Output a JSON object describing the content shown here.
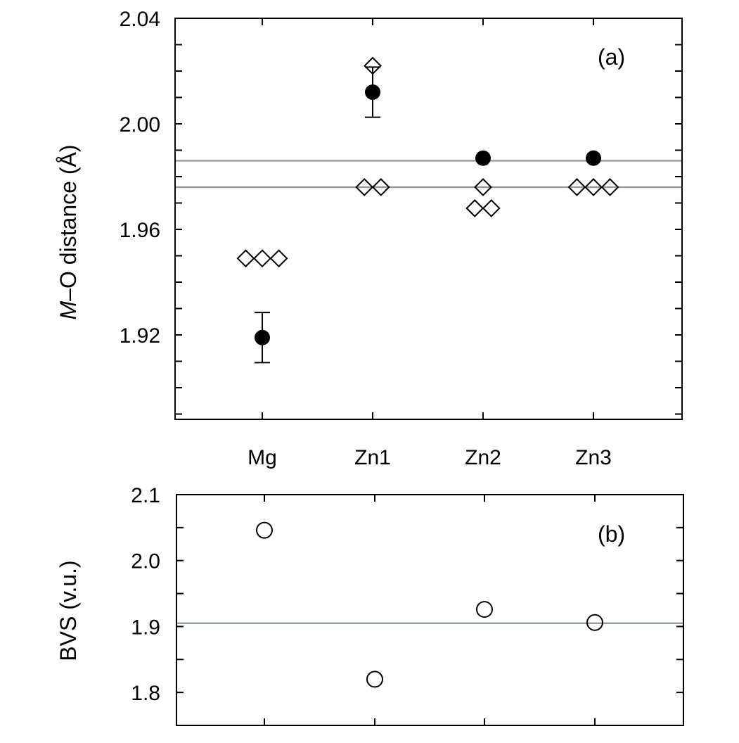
{
  "chart_data": [
    {
      "type": "scatter",
      "panel_label": "(a)",
      "ylabel_italic": "M",
      "ylabel_rest": "–O distance (Å)",
      "categories": [
        "Mg",
        "Zn1",
        "Zn2",
        "Zn3"
      ],
      "ylim": [
        1.888,
        2.04
      ],
      "yticks": [
        "2.04",
        "2.00",
        "1.96",
        "1.92"
      ],
      "ytick_values": [
        2.04,
        2.0,
        1.96,
        1.92
      ],
      "minor_tick_step": 0.01,
      "reference_lines": [
        1.976,
        1.986
      ],
      "reference_color": "#8a9696",
      "series": [
        {
          "marker": "filled-circle",
          "points": [
            {
              "category": "Mg",
              "y": 1.919,
              "error": 0.0095
            },
            {
              "category": "Zn1",
              "y": 2.012,
              "error": 0.0095
            },
            {
              "category": "Zn2",
              "y": 1.987
            },
            {
              "category": "Zn3",
              "y": 1.987
            }
          ]
        },
        {
          "marker": "open-diamond",
          "points": [
            {
              "category": "Mg",
              "y": 1.949,
              "offset": -0.15
            },
            {
              "category": "Mg",
              "y": 1.949,
              "offset": 0
            },
            {
              "category": "Mg",
              "y": 1.949,
              "offset": 0.15
            },
            {
              "category": "Zn1",
              "y": 2.022,
              "offset": 0
            },
            {
              "category": "Zn1",
              "y": 1.976,
              "offset": -0.075
            },
            {
              "category": "Zn1",
              "y": 1.976,
              "offset": 0.075
            },
            {
              "category": "Zn2",
              "y": 1.976,
              "offset": 0
            },
            {
              "category": "Zn2",
              "y": 1.968,
              "offset": -0.075
            },
            {
              "category": "Zn2",
              "y": 1.968,
              "offset": 0.075
            },
            {
              "category": "Zn3",
              "y": 1.976,
              "offset": -0.15
            },
            {
              "category": "Zn3",
              "y": 1.976,
              "offset": 0
            },
            {
              "category": "Zn3",
              "y": 1.976,
              "offset": 0.15
            }
          ]
        }
      ]
    },
    {
      "type": "scatter",
      "panel_label": "(b)",
      "ylabel": "BVS (v.u.)",
      "categories": [
        "Mg",
        "Zn1",
        "Zn2",
        "Zn3"
      ],
      "ylim": [
        1.75,
        2.1
      ],
      "yticks": [
        "2.1",
        "2.0",
        "1.9",
        "1.8"
      ],
      "ytick_values": [
        2.1,
        2.0,
        1.9,
        1.8
      ],
      "minor_tick_step": 0.05,
      "reference_lines": [
        1.905
      ],
      "reference_color": "#8a9696",
      "series": [
        {
          "marker": "open-circle",
          "points": [
            {
              "category": "Mg",
              "y": 2.046
            },
            {
              "category": "Zn1",
              "y": 1.82
            },
            {
              "category": "Zn2",
              "y": 1.926
            },
            {
              "category": "Zn3",
              "y": 1.906
            }
          ]
        }
      ]
    }
  ]
}
